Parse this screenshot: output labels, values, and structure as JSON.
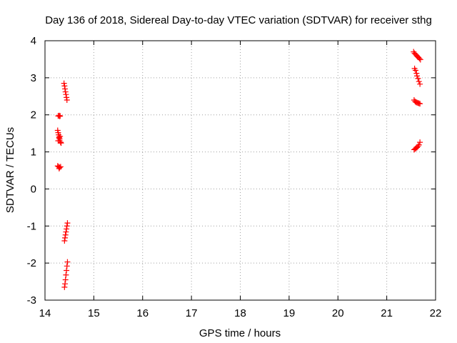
{
  "chart_data": {
    "type": "scatter",
    "title": "Day 136 of 2018, Sidereal Day-to-day VTEC variation (SDTVAR) for receiver sthg",
    "xlabel": "GPS time / hours",
    "ylabel": "SDTVAR / TECUs",
    "xlim": [
      14,
      22
    ],
    "ylim": [
      -3,
      4
    ],
    "xticks": [
      14,
      15,
      16,
      17,
      18,
      19,
      20,
      21,
      22
    ],
    "yticks": [
      -3,
      -2,
      -1,
      0,
      1,
      2,
      3,
      4
    ],
    "xtick_labels": [
      "14",
      "15",
      "16",
      "17",
      "18",
      "19",
      "20",
      "21",
      "22"
    ],
    "ytick_labels": [
      "-3",
      "-2",
      "-1",
      "0",
      "1",
      "2",
      "3",
      "4"
    ],
    "grid": true,
    "marker": "+",
    "marker_color": "#ff0000",
    "series": [
      {
        "name": "SDTVAR",
        "points": [
          [
            14.39,
            2.85
          ],
          [
            14.4,
            2.78
          ],
          [
            14.41,
            2.7
          ],
          [
            14.42,
            2.62
          ],
          [
            14.43,
            2.55
          ],
          [
            14.44,
            2.47
          ],
          [
            14.45,
            2.4
          ],
          [
            14.27,
            1.97
          ],
          [
            14.29,
            1.98
          ],
          [
            14.3,
            1.96
          ],
          [
            14.31,
            1.97
          ],
          [
            14.26,
            1.58
          ],
          [
            14.27,
            1.52
          ],
          [
            14.28,
            1.46
          ],
          [
            14.29,
            1.4
          ],
          [
            14.3,
            1.35
          ],
          [
            14.3,
            1.3
          ],
          [
            14.29,
            1.38
          ],
          [
            14.31,
            1.42
          ],
          [
            14.32,
            1.26
          ],
          [
            14.33,
            1.24
          ],
          [
            14.27,
            1.3
          ],
          [
            14.26,
            0.62
          ],
          [
            14.28,
            0.6
          ],
          [
            14.3,
            0.58
          ],
          [
            14.32,
            0.6
          ],
          [
            14.29,
            0.55
          ],
          [
            14.46,
            -0.92
          ],
          [
            14.45,
            -1.0
          ],
          [
            14.44,
            -1.08
          ],
          [
            14.43,
            -1.16
          ],
          [
            14.42,
            -1.24
          ],
          [
            14.41,
            -1.32
          ],
          [
            14.4,
            -1.4
          ],
          [
            14.46,
            -1.97
          ],
          [
            14.45,
            -2.08
          ],
          [
            14.44,
            -2.2
          ],
          [
            14.43,
            -2.32
          ],
          [
            14.42,
            -2.45
          ],
          [
            14.41,
            -2.56
          ],
          [
            14.4,
            -2.65
          ],
          [
            21.55,
            3.7
          ],
          [
            21.57,
            3.66
          ],
          [
            21.59,
            3.63
          ],
          [
            21.61,
            3.6
          ],
          [
            21.63,
            3.57
          ],
          [
            21.65,
            3.55
          ],
          [
            21.67,
            3.52
          ],
          [
            21.69,
            3.49
          ],
          [
            21.57,
            3.25
          ],
          [
            21.59,
            3.2
          ],
          [
            21.61,
            3.12
          ],
          [
            21.62,
            3.05
          ],
          [
            21.64,
            2.98
          ],
          [
            21.66,
            2.9
          ],
          [
            21.68,
            2.83
          ],
          [
            21.56,
            2.4
          ],
          [
            21.58,
            2.36
          ],
          [
            21.6,
            2.34
          ],
          [
            21.62,
            2.33
          ],
          [
            21.64,
            2.32
          ],
          [
            21.66,
            2.31
          ],
          [
            21.68,
            2.3
          ],
          [
            21.56,
            1.06
          ],
          [
            21.58,
            1.08
          ],
          [
            21.6,
            1.1
          ],
          [
            21.62,
            1.12
          ],
          [
            21.64,
            1.15
          ],
          [
            21.66,
            1.19
          ],
          [
            21.68,
            1.26
          ]
        ]
      }
    ]
  }
}
